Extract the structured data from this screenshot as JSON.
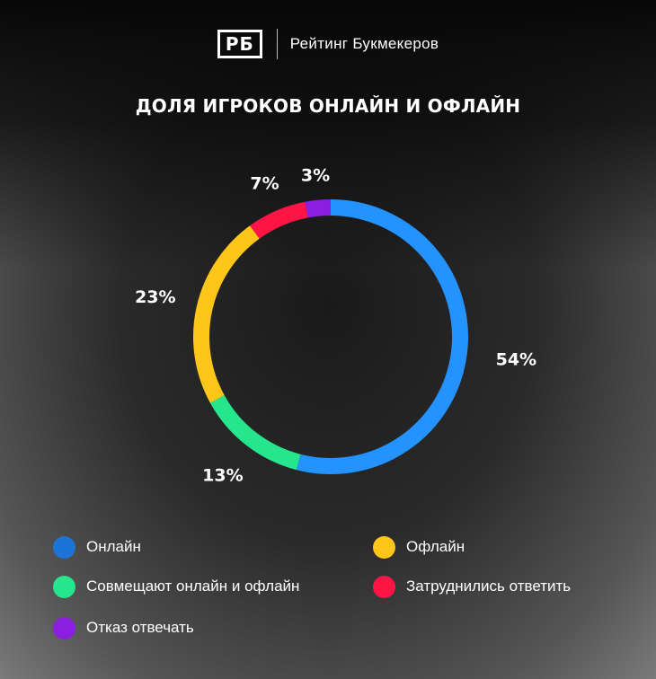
{
  "header": {
    "logo_mark": "РБ",
    "brand_name": "Рейтинг Букмекеров"
  },
  "chart_data": {
    "type": "pie",
    "title": "ДОЛЯ ИГРОКОВ ОНЛАЙН И ОФЛАЙН",
    "categories": [
      "Онлайн",
      "Совмещают онлайн и офлайн",
      "Офлайн",
      "Затруднились ответить",
      "Отказ отвечать"
    ],
    "values": [
      54,
      13,
      23,
      7,
      3
    ],
    "value_labels": [
      "54%",
      "13%",
      "23%",
      "7%",
      "3%"
    ],
    "colors": [
      "#2593ff",
      "#25e68b",
      "#ffc61a",
      "#ff1446",
      "#8a1fe0"
    ],
    "style": "donut",
    "start": "12 o'clock, clockwise",
    "legend_position": "bottom"
  },
  "legend": {
    "items": [
      {
        "label": "Онлайн",
        "color": "#1c74d8"
      },
      {
        "label": "Офлайн",
        "color": "#ffc61a"
      },
      {
        "label": "Совмещают онлайн и офлайн",
        "color": "#25e68b"
      },
      {
        "label": "Затруднились ответить",
        "color": "#ff1446"
      },
      {
        "label": "Отказ отвечать",
        "color": "#8a1fe0"
      }
    ]
  }
}
